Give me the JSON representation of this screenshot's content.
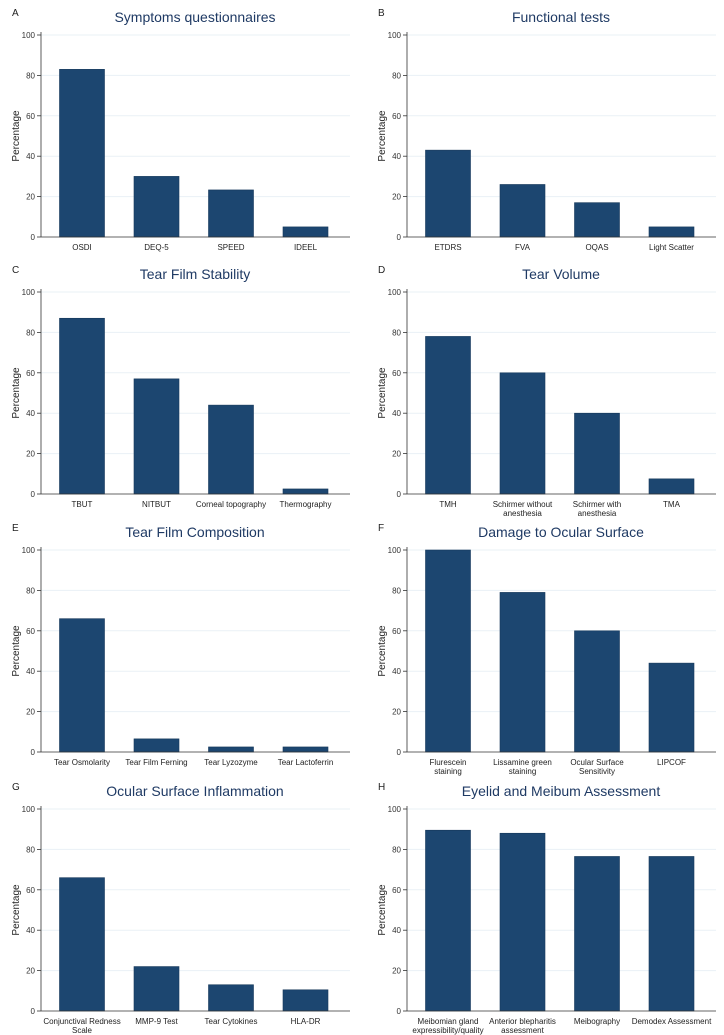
{
  "chart_data": [
    {
      "type": "bar",
      "panel": "A",
      "title": "Symptoms questionnaires",
      "ylabel": "Percentage",
      "xlabel": "",
      "ylim": [
        0,
        100
      ],
      "yticks": [
        0,
        20,
        40,
        60,
        80,
        100
      ],
      "grid": true,
      "categories": [
        "OSDI",
        "DEQ-5",
        "SPEED",
        "IDEEL"
      ],
      "values": [
        83,
        30,
        23.3,
        5
      ]
    },
    {
      "type": "bar",
      "panel": "B",
      "title": "Functional tests",
      "ylabel": "Percentage",
      "xlabel": "",
      "ylim": [
        0,
        100
      ],
      "yticks": [
        0,
        20,
        40,
        60,
        80,
        100
      ],
      "grid": true,
      "categories": [
        "ETDRS",
        "FVA",
        "OQAS",
        "Light Scatter"
      ],
      "values": [
        43,
        26,
        17,
        5
      ]
    },
    {
      "type": "bar",
      "panel": "C",
      "title": "Tear Film Stability",
      "ylabel": "Percentage",
      "xlabel": "",
      "ylim": [
        0,
        100
      ],
      "yticks": [
        0,
        20,
        40,
        60,
        80,
        100
      ],
      "grid": true,
      "categories": [
        "TBUT",
        "NITBUT",
        "Corneal topography",
        "Thermography"
      ],
      "values": [
        87,
        57,
        44,
        2.5
      ]
    },
    {
      "type": "bar",
      "panel": "D",
      "title": "Tear Volume",
      "ylabel": "Percentage",
      "xlabel": "",
      "ylim": [
        0,
        100
      ],
      "yticks": [
        0,
        20,
        40,
        60,
        80,
        100
      ],
      "grid": true,
      "categories": [
        "TMH",
        "Schirmer without\nanesthesia",
        "Schirmer with\nanesthesia",
        "TMA"
      ],
      "values": [
        78,
        60,
        40,
        7.5
      ]
    },
    {
      "type": "bar",
      "panel": "E",
      "title": "Tear Film Composition",
      "ylabel": "Percentage",
      "xlabel": "",
      "ylim": [
        0,
        100
      ],
      "yticks": [
        0,
        20,
        40,
        60,
        80,
        100
      ],
      "grid": true,
      "categories": [
        "Tear Osmolarity",
        "Tear Film Ferning",
        "Tear Lyzozyme",
        "Tear Lactoferrin"
      ],
      "values": [
        66,
        6.5,
        2.5,
        2.5
      ]
    },
    {
      "type": "bar",
      "panel": "F",
      "title": "Damage to Ocular Surface",
      "ylabel": "Percentage",
      "xlabel": "",
      "ylim": [
        0,
        100
      ],
      "yticks": [
        0,
        20,
        40,
        60,
        80,
        100
      ],
      "grid": true,
      "categories": [
        "Flurescein\nstaining",
        "Lissamine green\nstaining",
        "Ocular Surface\nSensitivity",
        "LIPCOF"
      ],
      "values": [
        100,
        79,
        60,
        44
      ]
    },
    {
      "type": "bar",
      "panel": "G",
      "title": "Ocular Surface Inflammation",
      "ylabel": "Percentage",
      "xlabel": "",
      "ylim": [
        0,
        100
      ],
      "yticks": [
        0,
        20,
        40,
        60,
        80,
        100
      ],
      "grid": true,
      "categories": [
        "Conjunctival Redness\nScale",
        "MMP-9 Test",
        "Tear Cytokines",
        "HLA-DR"
      ],
      "values": [
        66,
        22,
        13,
        10.5
      ]
    },
    {
      "type": "bar",
      "panel": "H",
      "title": "Eyelid and Meibum Assessment",
      "ylabel": "Percentage",
      "xlabel": "",
      "ylim": [
        0,
        100
      ],
      "yticks": [
        0,
        20,
        40,
        60,
        80,
        100
      ],
      "grid": true,
      "categories": [
        "Meibomian gland\nexpressibility/quality",
        "Anterior blepharitis\nassessment",
        "Meibography",
        "Demodex Assessment"
      ],
      "values": [
        89.5,
        88,
        76.5,
        76.5
      ]
    }
  ],
  "colors": {
    "bar": "#1c4670",
    "bar_edge": "#16385a",
    "title": "#1f3a64",
    "grid": "#eaf1f6",
    "axis": "#333333"
  }
}
